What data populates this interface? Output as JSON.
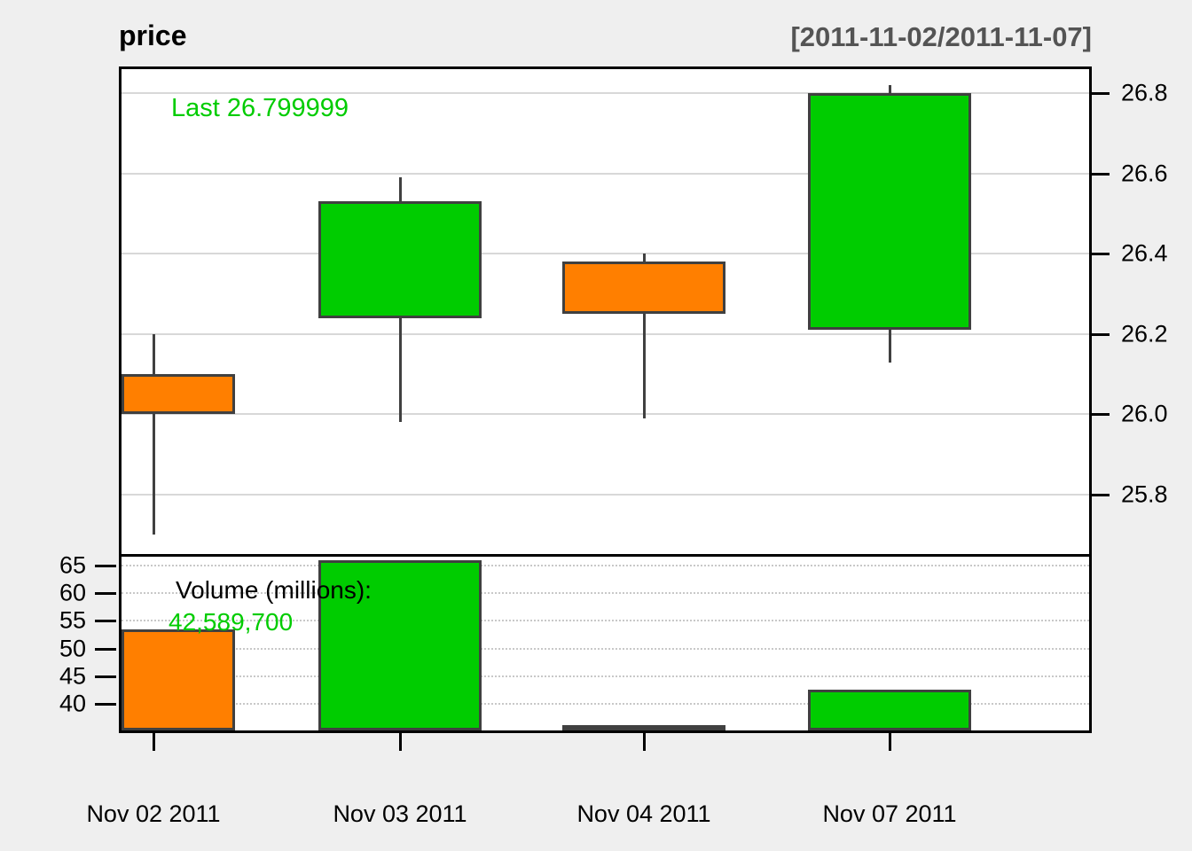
{
  "header": {
    "title": "price",
    "range": "[2011-11-02/2011-11-07]"
  },
  "annotations": {
    "last_price": "Last 26.799999",
    "volume_label": "Volume (millions):",
    "volume_value": "42,589,700"
  },
  "colors": {
    "up": "#00CC00",
    "down": "#FF7F00",
    "candle_border": "#404040",
    "wick": "#404040",
    "last_text": "#00CC00",
    "volume_value_text": "#00CC00",
    "range_text": "#545454",
    "grid_solid": "#D8D8D8",
    "grid_dotted": "#C8C8C8",
    "page_bg": "#EFEFEF",
    "panel_bg": "#FFFFFF",
    "axis_text": "#000000"
  },
  "price_axis": {
    "side": "right",
    "tick_labels": [
      "26.8",
      "26.6",
      "26.4",
      "26.2",
      "26.0",
      "25.8"
    ]
  },
  "volume_axis": {
    "side": "left",
    "tick_labels": [
      "65",
      "60",
      "55",
      "50",
      "45",
      "40"
    ]
  },
  "x_axis": {
    "labels": [
      "Nov 02 2011",
      "Nov 03 2011",
      "Nov 04 2011",
      "Nov 07 2011"
    ]
  },
  "chart_data": {
    "type": "candlestick",
    "title": "price",
    "subtitle": "[2011-11-02/2011-11-07]",
    "x": [
      "2011-11-02",
      "2011-11-03",
      "2011-11-04",
      "2011-11-07"
    ],
    "ohlc": [
      {
        "date": "Nov 02 2011",
        "open": 26.1,
        "high": 26.2,
        "low": 25.7,
        "close": 26.0,
        "direction": "down"
      },
      {
        "date": "Nov 03 2011",
        "open": 26.24,
        "high": 26.59,
        "low": 25.98,
        "close": 26.53,
        "direction": "up"
      },
      {
        "date": "Nov 04 2011",
        "open": 26.38,
        "high": 26.4,
        "low": 25.99,
        "close": 26.25,
        "direction": "down"
      },
      {
        "date": "Nov 07 2011",
        "open": 26.21,
        "high": 26.82,
        "low": 26.13,
        "close": 26.8,
        "direction": "up"
      }
    ],
    "volume_millions": [
      53.4,
      66.0,
      36.2,
      42.5897
    ],
    "last": 26.799999,
    "last_volume": "42,589,700",
    "price_ylim": [
      25.65,
      26.87
    ],
    "volume_ylim": [
      34.6,
      66.6
    ],
    "price_grid": [
      26.8,
      26.6,
      26.4,
      26.2,
      26.0,
      25.8
    ],
    "volume_grid": [
      65,
      60,
      55,
      50,
      45,
      40
    ],
    "legend_position": "none",
    "grid": true
  }
}
